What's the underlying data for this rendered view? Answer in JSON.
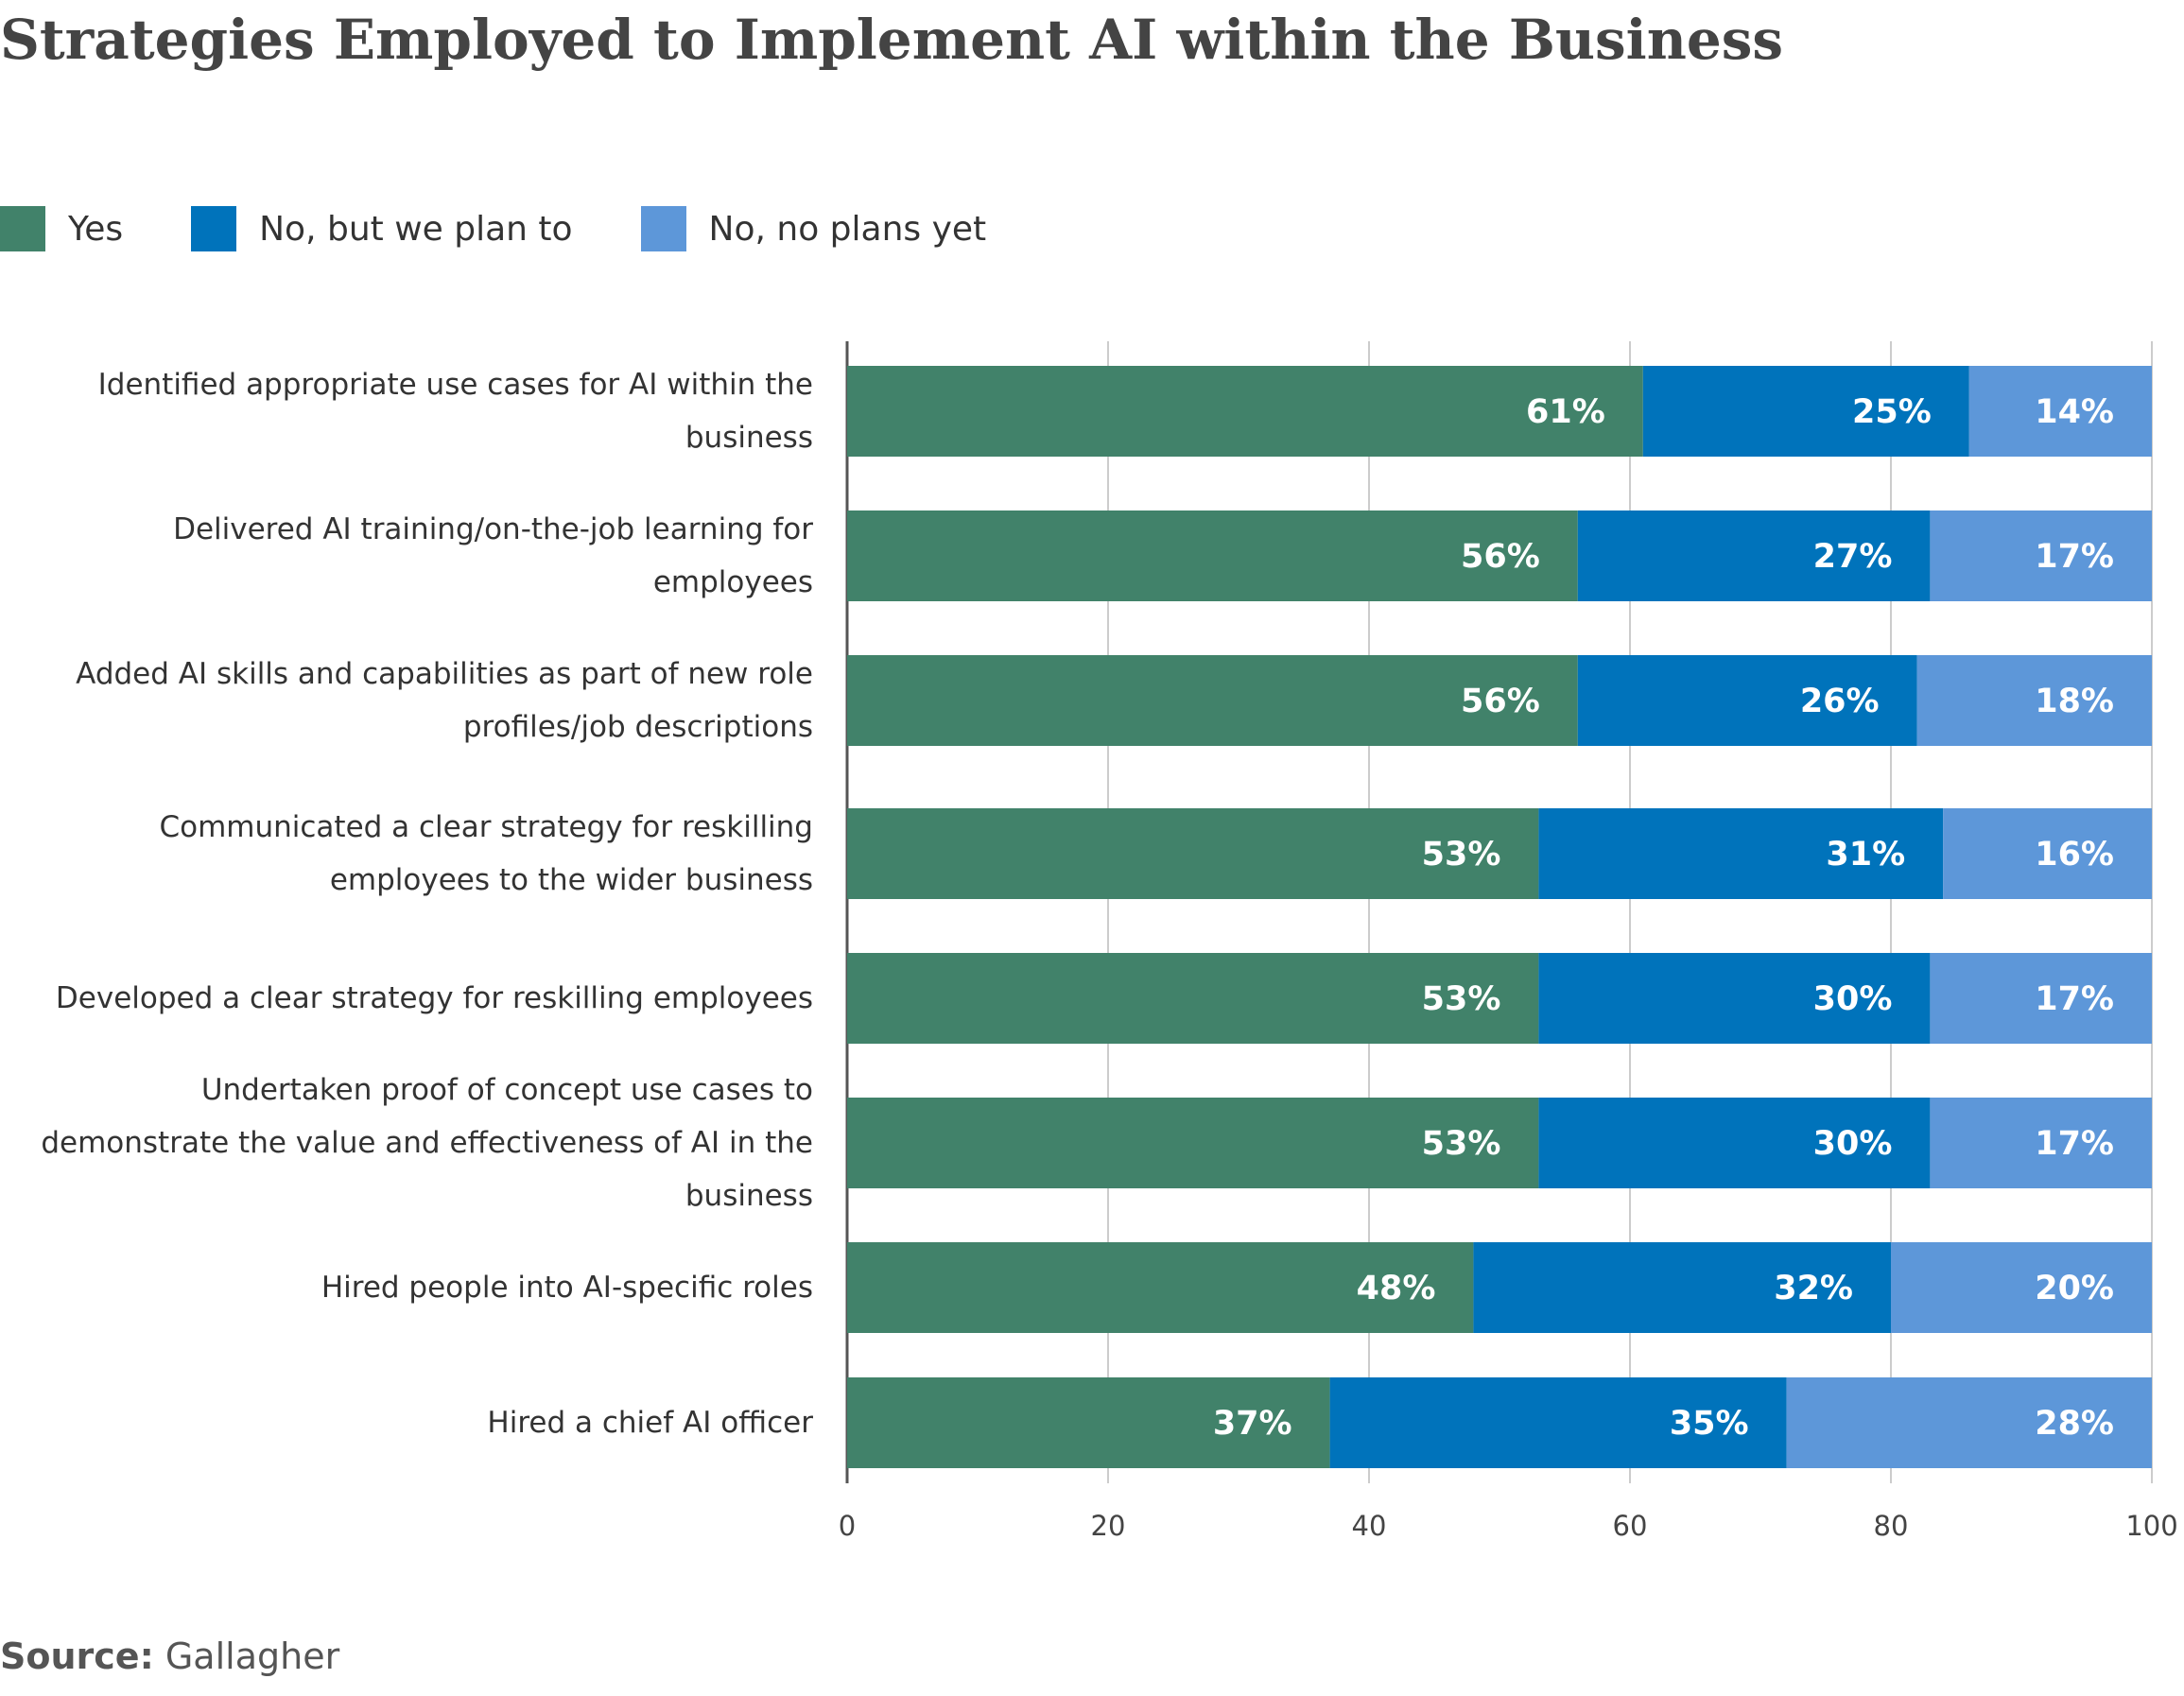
{
  "chart_data": {
    "type": "stacked-bar-horizontal",
    "title": "Strategies Employed to Implement AI within the Business",
    "categories": [
      "Identified appropriate use cases for AI within the business",
      "Delivered AI training/on-the-job learning for employees",
      "Added AI skills and capabilities as part of new role profiles/job descriptions",
      "Communicated a clear strategy for reskilling employees to the wider business",
      "Developed a clear strategy for reskilling employees",
      "Undertaken proof of concept use cases to demonstrate the value and effectiveness of AI in the business",
      "Hired people into AI-specific roles",
      "Hired a chief AI officer"
    ],
    "series": [
      {
        "name": "Yes",
        "color": "#41826a",
        "values": [
          61,
          56,
          56,
          53,
          53,
          53,
          48,
          37
        ],
        "value_labels": [
          "61%",
          "56%",
          "56%",
          "53%",
          "53%",
          "53%",
          "48%",
          "37%"
        ]
      },
      {
        "name": "No, but we plan to",
        "color": "#0073bb",
        "values": [
          25,
          27,
          26,
          31,
          30,
          30,
          32,
          35
        ],
        "value_labels": [
          "25%",
          "27%",
          "26%",
          "31%",
          "30%",
          "30%",
          "32%",
          "35%"
        ]
      },
      {
        "name": "No, no plans yet",
        "color": "#5d97d9",
        "values": [
          14,
          17,
          18,
          16,
          17,
          17,
          20,
          28
        ],
        "value_labels": [
          "14%",
          "17%",
          "18%",
          "16%",
          "17%",
          "17%",
          "20%",
          "28%"
        ]
      }
    ],
    "xlim": [
      0,
      100
    ],
    "xticks": [
      0,
      20,
      40,
      60,
      80,
      100
    ],
    "grid": true,
    "source_label": "Source:",
    "source": "Gallagher"
  }
}
